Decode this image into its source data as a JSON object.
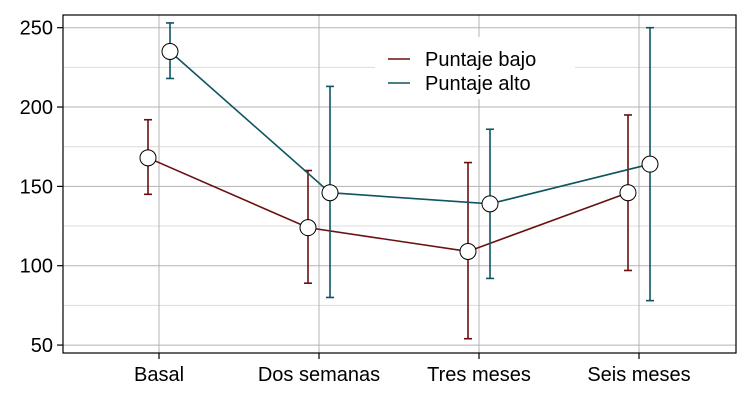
{
  "chart_data": {
    "type": "line",
    "title": "",
    "xlabel": "",
    "ylabel": "",
    "categories": [
      "Basal",
      "Dos semanas",
      "Tres meses",
      "Seis meses"
    ],
    "ylim": [
      45,
      258
    ],
    "yticks": [
      50,
      100,
      150,
      200,
      250
    ],
    "grid": true,
    "legend_position": "top-right",
    "series": [
      {
        "name": "Puntaje bajo",
        "color": "#6b0f0f",
        "values": [
          168,
          124,
          109,
          146
        ],
        "lower": [
          145,
          89,
          54,
          97
        ],
        "upper": [
          192,
          160,
          165,
          195
        ]
      },
      {
        "name": "Puntaje alto",
        "color": "#0f5560",
        "values": [
          235,
          146,
          139,
          164
        ],
        "lower": [
          218,
          80,
          92,
          78
        ],
        "upper": [
          253,
          213,
          186,
          250
        ]
      }
    ]
  }
}
